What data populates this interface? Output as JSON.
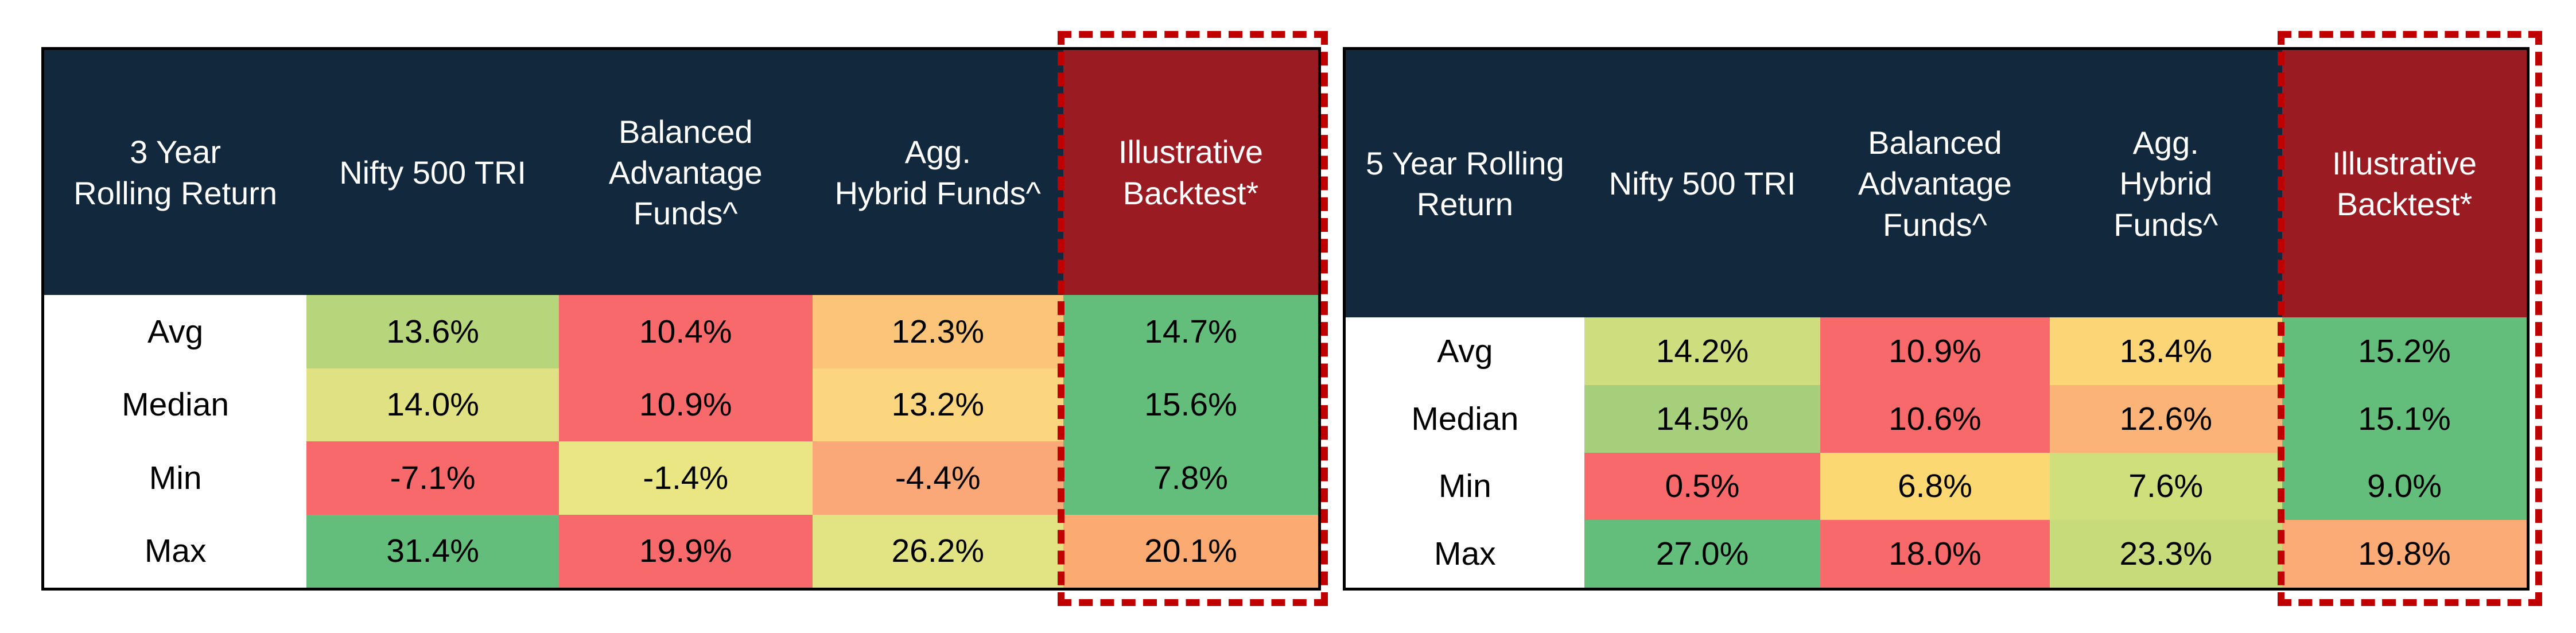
{
  "colors": {
    "page_bg": "#ffffff",
    "header_bg": "#12293d",
    "header_text": "#ffffff",
    "highlight_header_bg": "#9a1c22",
    "dashed_outline": "#c00000",
    "table_border": "#000000",
    "row_label_bg": "#ffffff",
    "cell_text": "#000000"
  },
  "chart_data": [
    {
      "type": "table",
      "subtype": "heatmap",
      "title": "3 Year Rolling Return",
      "corner_header": "3 Year\nRolling Return",
      "columns": [
        "Nifty 500 TRI",
        "Balanced\nAdvantage\nFunds^",
        "Agg.\nHybrid Funds^",
        "Illustrative\nBacktest*"
      ],
      "highlight_column": "Illustrative Backtest*",
      "rows": [
        {
          "label": "Avg",
          "values": [
            "13.6%",
            "10.4%",
            "12.3%",
            "14.7%"
          ],
          "colors": [
            "#b7d67c",
            "#f8696b",
            "#fbc478",
            "#63be7b"
          ]
        },
        {
          "label": "Median",
          "values": [
            "14.0%",
            "10.9%",
            "13.2%",
            "15.6%"
          ],
          "colors": [
            "#dfe182",
            "#f8696b",
            "#fcd67e",
            "#63be7b"
          ]
        },
        {
          "label": "Min",
          "values": [
            "-7.1%",
            "-1.4%",
            "-4.4%",
            "7.8%"
          ],
          "colors": [
            "#f8696b",
            "#e9e683",
            "#faa877",
            "#63be7b"
          ]
        },
        {
          "label": "Max",
          "values": [
            "31.4%",
            "19.9%",
            "26.2%",
            "20.1%"
          ],
          "colors": [
            "#63be7b",
            "#f8696b",
            "#e2e483",
            "#fbaa72"
          ]
        }
      ]
    },
    {
      "type": "table",
      "subtype": "heatmap",
      "title": "5 Year Rolling Return",
      "corner_header": "5 Year Rolling\nReturn",
      "columns": [
        "Nifty 500 TRI",
        "Balanced\nAdvantage\nFunds^",
        "Agg.\nHybrid\nFunds^",
        "Illustrative\nBacktest*"
      ],
      "highlight_column": "Illustrative Backtest*",
      "rows": [
        {
          "label": "Avg",
          "values": [
            "14.2%",
            "10.9%",
            "13.4%",
            "15.2%"
          ],
          "colors": [
            "#cedd7e",
            "#f8696b",
            "#fcd577",
            "#63be7b"
          ]
        },
        {
          "label": "Median",
          "values": [
            "14.5%",
            "10.6%",
            "12.6%",
            "15.1%"
          ],
          "colors": [
            "#a6cf7c",
            "#f8696b",
            "#fbb377",
            "#63be7b"
          ]
        },
        {
          "label": "Min",
          "values": [
            "0.5%",
            "6.8%",
            "7.6%",
            "9.0%"
          ],
          "colors": [
            "#f8696b",
            "#fcd873",
            "#cfdf7b",
            "#63be7b"
          ]
        },
        {
          "label": "Max",
          "values": [
            "27.0%",
            "18.0%",
            "23.3%",
            "19.8%"
          ],
          "colors": [
            "#63be7b",
            "#f8696b",
            "#c8db7a",
            "#fbab76"
          ]
        }
      ]
    }
  ]
}
